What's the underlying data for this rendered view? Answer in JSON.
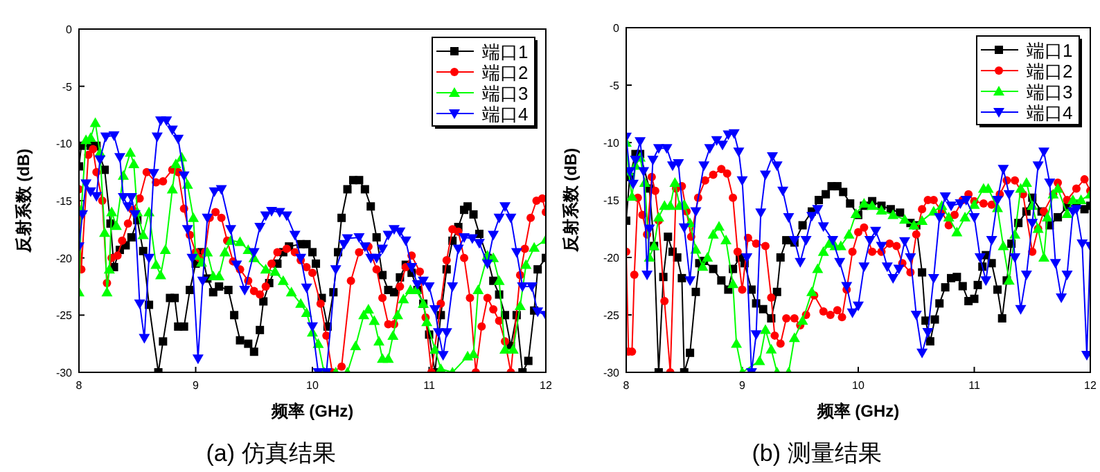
{
  "chart_data": [
    {
      "type": "line",
      "title": "(a) 仿真结果",
      "xlabel": "频率 (GHz)",
      "ylabel": "反射系数 (dB)",
      "xlim": [
        8,
        12
      ],
      "ylim": [
        -30,
        0
      ],
      "xticks": [
        8,
        9,
        10,
        11,
        12
      ],
      "yticks": [
        0,
        -5,
        -10,
        -15,
        -20,
        -25,
        -30
      ],
      "grid": false,
      "legend": "top right",
      "series": [
        {
          "name": "端口1",
          "color": "#000000",
          "marker": "square",
          "x": [
            8.0,
            8.02,
            8.1,
            8.15,
            8.22,
            8.27,
            8.3,
            8.35,
            8.4,
            8.45,
            8.5,
            8.55,
            8.6,
            8.68,
            8.72,
            8.78,
            8.82,
            8.85,
            8.9,
            8.95,
            9.0,
            9.05,
            9.1,
            9.15,
            9.2,
            9.28,
            9.33,
            9.38,
            9.45,
            9.5,
            9.55,
            9.58,
            9.63,
            9.7,
            9.75,
            9.8,
            9.9,
            9.95,
            10.0,
            10.03,
            10.08,
            10.13,
            10.18,
            10.22,
            10.25,
            10.3,
            10.35,
            10.4,
            10.45,
            10.5,
            10.55,
            10.6,
            10.65,
            10.7,
            10.75,
            10.8,
            10.85,
            10.9,
            10.95,
            11.0,
            11.05,
            11.1,
            11.15,
            11.2,
            11.25,
            11.3,
            11.33,
            11.38,
            11.43,
            11.5,
            11.55,
            11.6,
            11.65,
            11.7,
            11.75,
            11.8,
            11.85,
            11.9,
            11.93,
            12.0
          ],
          "values": [
            -12,
            -10.2,
            -10.2,
            -10.2,
            -12.3,
            -17,
            -20.8,
            -19.3,
            -18.9,
            -18.2,
            -16.7,
            -19.4,
            -24.1,
            -30,
            -27.3,
            -23.5,
            -23.5,
            -26,
            -26,
            -22.8,
            -20.5,
            -19.5,
            -21.8,
            -23,
            -22.5,
            -22.8,
            -25,
            -27.2,
            -27.5,
            -28.2,
            -26.3,
            -23.8,
            -22.2,
            -20.5,
            -19.5,
            -19,
            -18.8,
            -18.8,
            -19.5,
            -20.5,
            -23.5,
            -26,
            -23,
            -19.5,
            -16.5,
            -14,
            -13.2,
            -13.2,
            -14,
            -15.5,
            -18.2,
            -21.5,
            -22.8,
            -23,
            -21.7,
            -20.6,
            -21.3,
            -22.8,
            -24,
            -26.7,
            -30,
            -25,
            -21,
            -18.5,
            -17.3,
            -15.8,
            -15.5,
            -16.2,
            -17.9,
            -20,
            -22,
            -23.2,
            -25,
            -27.7,
            -25,
            -30,
            -29,
            -24.6,
            -21,
            -20
          ]
        },
        {
          "name": "端口2",
          "color": "#ff0000",
          "marker": "circle",
          "x": [
            8.0,
            8.02,
            8.08,
            8.12,
            8.15,
            8.2,
            8.24,
            8.28,
            8.33,
            8.37,
            8.42,
            8.46,
            8.52,
            8.58,
            8.66,
            8.72,
            8.8,
            8.85,
            8.9,
            8.95,
            9.0,
            9.03,
            9.08,
            9.12,
            9.17,
            9.22,
            9.27,
            9.32,
            9.38,
            9.45,
            9.5,
            9.55,
            9.6,
            9.65,
            9.7,
            9.78,
            9.85,
            9.9,
            9.95,
            10.0,
            10.07,
            10.12,
            10.17,
            10.25,
            10.33,
            10.4,
            10.48,
            10.55,
            10.6,
            10.65,
            10.7,
            10.75,
            10.8,
            10.85,
            10.92,
            10.97,
            11.02,
            11.1,
            11.15,
            11.2,
            11.25,
            11.3,
            11.35,
            11.4,
            11.45,
            11.5,
            11.55,
            11.6,
            11.65,
            11.7,
            11.78,
            11.82,
            11.87,
            11.92,
            11.97,
            12.0
          ],
          "values": [
            -14,
            -21,
            -11,
            -10.5,
            -12.5,
            -15,
            -22.2,
            -20,
            -19.8,
            -18.5,
            -17,
            -15.8,
            -14.8,
            -12.5,
            -13.4,
            -13.3,
            -12.3,
            -12.5,
            -15.7,
            -18,
            -19.5,
            -20,
            -19.5,
            -16.5,
            -16,
            -16.5,
            -18.5,
            -20.3,
            -21,
            -22,
            -22.9,
            -23.2,
            -22.5,
            -20.5,
            -19.5,
            -19.2,
            -19.5,
            -20.2,
            -20.8,
            -21.3,
            -24,
            -26.8,
            -30,
            -29.5,
            -22,
            -19.5,
            -19,
            -21,
            -23.5,
            -25.8,
            -25.8,
            -22.5,
            -20.8,
            -19.8,
            -21.2,
            -25.2,
            -30,
            -24,
            -20.2,
            -17.5,
            -17.7,
            -20,
            -23.5,
            -30,
            -26,
            -23.5,
            -24.5,
            -25.5,
            -27.3,
            -30,
            -21.5,
            -19.2,
            -16.5,
            -15,
            -14.8,
            -16
          ]
        },
        {
          "name": "端口3",
          "color": "#00ff00",
          "marker": "triangle",
          "x": [
            8.0,
            8.02,
            8.06,
            8.1,
            8.14,
            8.18,
            8.22,
            8.24,
            8.26,
            8.28,
            8.32,
            8.38,
            8.44,
            8.47,
            8.5,
            8.55,
            8.6,
            8.66,
            8.7,
            8.74,
            8.8,
            8.83,
            8.88,
            8.93,
            8.98,
            9.0,
            9.05,
            9.1,
            9.15,
            9.2,
            9.25,
            9.3,
            9.38,
            9.45,
            9.5,
            9.6,
            9.68,
            9.75,
            9.82,
            9.9,
            9.95,
            10.0,
            10.05,
            10.1,
            10.2,
            10.3,
            10.37,
            10.44,
            10.48,
            10.53,
            10.57,
            10.6,
            10.65,
            10.69,
            10.73,
            10.78,
            10.84,
            10.89,
            10.95,
            10.98,
            11.05,
            11.1,
            11.2,
            11.33,
            11.38,
            11.42,
            11.5,
            11.55,
            11.6,
            11.65,
            11.72,
            11.78,
            11.83,
            11.9,
            12.0
          ],
          "values": [
            -23,
            -15.8,
            -9.7,
            -9.5,
            -8.2,
            -10.8,
            -17.8,
            -23,
            -21,
            -16,
            -17.2,
            -12.8,
            -10.8,
            -11.8,
            -16,
            -18,
            -16,
            -20.6,
            -21.5,
            -19.3,
            -14,
            -11.8,
            -11.2,
            -13.6,
            -16.5,
            -19.8,
            -20.4,
            -19.5,
            -21.6,
            -21.6,
            -19.5,
            -18.5,
            -18.6,
            -19.3,
            -20,
            -21,
            -21.2,
            -22,
            -23,
            -24,
            -24.8,
            -26.5,
            -27.5,
            -30,
            -30,
            -30,
            -27.7,
            -25,
            -24.5,
            -25.5,
            -27.3,
            -28.8,
            -28.8,
            -26.8,
            -25,
            -23.6,
            -22.8,
            -22.8,
            -24,
            -25.6,
            -28,
            -29.7,
            -30,
            -28.6,
            -28.4,
            -22.8,
            -19.8,
            -20,
            -22,
            -28,
            -28,
            -24.2,
            -20.6,
            -19.1,
            -18.4
          ]
        },
        {
          "name": "端口4",
          "color": "#0000ff",
          "marker": "triangle_down",
          "x": [
            8.0,
            8.03,
            8.06,
            8.1,
            8.15,
            8.18,
            8.23,
            8.3,
            8.35,
            8.38,
            8.42,
            8.45,
            8.48,
            8.52,
            8.56,
            8.6,
            8.64,
            8.67,
            8.7,
            8.75,
            8.8,
            8.85,
            8.9,
            8.93,
            8.97,
            9.02,
            9.06,
            9.1,
            9.16,
            9.22,
            9.3,
            9.35,
            9.42,
            9.5,
            9.55,
            9.6,
            9.65,
            9.72,
            9.78,
            9.85,
            9.9,
            9.95,
            10.0,
            10.05,
            10.12,
            10.2,
            10.27,
            10.3,
            10.4,
            10.45,
            10.5,
            10.55,
            10.6,
            10.65,
            10.7,
            10.75,
            10.8,
            10.85,
            10.9,
            10.95,
            11.0,
            11.05,
            11.08,
            11.12,
            11.15,
            11.2,
            11.25,
            11.3,
            11.37,
            11.43,
            11.5,
            11.55,
            11.6,
            11.65,
            11.7,
            11.75,
            11.8,
            11.88,
            11.93,
            12.0
          ],
          "values": [
            -19,
            -16.2,
            -13.5,
            -14.2,
            -14.6,
            -11.4,
            -9.4,
            -9.3,
            -11.2,
            -14.7,
            -15.5,
            -14.7,
            -16.2,
            -24,
            -27,
            -20,
            -12.6,
            -9.4,
            -8,
            -8,
            -8.8,
            -9.6,
            -12.8,
            -17.5,
            -20,
            -28.8,
            -22,
            -16.5,
            -14.2,
            -14,
            -17.5,
            -20.6,
            -22.8,
            -19.5,
            -17.3,
            -16.3,
            -15.9,
            -16,
            -16.3,
            -18,
            -20,
            -22.6,
            -26,
            -30,
            -30,
            -21,
            -18.8,
            -18.3,
            -18.2,
            -19,
            -20,
            -20,
            -19.2,
            -18,
            -17.5,
            -17.7,
            -18.5,
            -20.8,
            -22.3,
            -22,
            -22.5,
            -24.5,
            -26.5,
            -28.5,
            -26.5,
            -22.5,
            -19.2,
            -18.2,
            -18.3,
            -18.7,
            -20.5,
            -18,
            -16.5,
            -15.5,
            -16.5,
            -19.5,
            -22.5,
            -22.5,
            -24.7,
            -25
          ]
        }
      ]
    },
    {
      "type": "line",
      "title": "(b) 测量结果",
      "xlabel": "频率 (GHz)",
      "ylabel": "反射系数 (dB)",
      "xlim": [
        8,
        12
      ],
      "ylim": [
        -30,
        0
      ],
      "xticks": [
        8,
        9,
        10,
        11,
        12
      ],
      "yticks": [
        0,
        -5,
        -10,
        -15,
        -20,
        -25,
        -30
      ],
      "grid": false,
      "legend": "top right",
      "series": [
        {
          "name": "端口1",
          "color": "#000000",
          "marker": "square",
          "x": [
            8.0,
            8.03,
            8.08,
            8.12,
            8.2,
            8.24,
            8.28,
            8.32,
            8.36,
            8.4,
            8.44,
            8.48,
            8.5,
            8.55,
            8.6,
            8.63,
            8.67,
            8.75,
            8.82,
            8.88,
            8.92,
            8.98,
            9.02,
            9.08,
            9.12,
            9.18,
            9.25,
            9.3,
            9.33,
            9.38,
            9.45,
            9.52,
            9.6,
            9.66,
            9.72,
            9.77,
            9.82,
            9.87,
            9.93,
            10.0,
            10.05,
            10.12,
            10.2,
            10.28,
            10.36,
            10.45,
            10.5,
            10.55,
            10.58,
            10.62,
            10.66,
            10.7,
            10.75,
            10.8,
            10.85,
            10.9,
            10.95,
            11.0,
            11.03,
            11.07,
            11.1,
            11.15,
            11.2,
            11.24,
            11.28,
            11.32,
            11.38,
            11.45,
            11.5,
            11.58,
            11.65,
            11.72,
            11.8,
            11.88,
            11.95,
            12.0
          ],
          "values": [
            -16.8,
            -13,
            -11,
            -11,
            -14,
            -19,
            -30,
            -21.7,
            -18.2,
            -19.5,
            -20,
            -21.8,
            -30,
            -28.3,
            -23,
            -20.5,
            -20.3,
            -21,
            -22,
            -22.8,
            -21,
            -20,
            -20.5,
            -22.8,
            -24,
            -24.5,
            -25.3,
            -23,
            -20,
            -18.5,
            -18.7,
            -17.2,
            -16,
            -15,
            -14.5,
            -13.8,
            -13.8,
            -14.3,
            -15.3,
            -16.3,
            -15.5,
            -15.1,
            -15.5,
            -15.8,
            -16.1,
            -17,
            -17.2,
            -21.3,
            -25.5,
            -27.3,
            -25.4,
            -24,
            -22.6,
            -21.8,
            -21.7,
            -22.5,
            -23.8,
            -23.6,
            -22.4,
            -20.8,
            -19.8,
            -20.5,
            -22.8,
            -25.3,
            -22,
            -18.8,
            -17,
            -16,
            -14.8,
            -16,
            -17.2,
            -16.5,
            -15.6,
            -15.4,
            -15.8,
            -15.5
          ]
        },
        {
          "name": "端口2",
          "color": "#ff0000",
          "marker": "circle",
          "x": [
            8.0,
            8.02,
            8.05,
            8.07,
            8.1,
            8.14,
            8.18,
            8.22,
            8.25,
            8.28,
            8.33,
            8.38,
            8.43,
            8.48,
            8.52,
            8.56,
            8.62,
            8.68,
            8.75,
            8.82,
            8.87,
            8.92,
            8.96,
            9.0,
            9.05,
            9.12,
            9.2,
            9.25,
            9.28,
            9.33,
            9.38,
            9.45,
            9.5,
            9.55,
            9.62,
            9.7,
            9.76,
            9.82,
            9.86,
            9.9,
            9.95,
            10.0,
            10.05,
            10.12,
            10.2,
            10.27,
            10.33,
            10.38,
            10.45,
            10.5,
            10.55,
            10.6,
            10.65,
            10.72,
            10.78,
            10.83,
            10.9,
            10.95,
            11.0,
            11.08,
            11.15,
            11.22,
            11.28,
            11.35,
            11.42,
            11.5,
            11.55,
            11.6,
            11.68,
            11.72,
            11.8,
            11.88,
            11.95,
            12.0
          ],
          "values": [
            -19.5,
            -28.2,
            -28.2,
            -21.5,
            -14.8,
            -16.3,
            -18,
            -13,
            -14.2,
            -16.8,
            -23.8,
            -30,
            -14,
            -13.8,
            -16,
            -18.2,
            -14.8,
            -13.3,
            -12.8,
            -12.3,
            -12.7,
            -14.8,
            -19.5,
            -22.8,
            -18.3,
            -18.8,
            -19,
            -23.5,
            -26.8,
            -27.5,
            -25.3,
            -25.3,
            -25.9,
            -25,
            -23.3,
            -24.7,
            -25,
            -24.6,
            -25.2,
            -22.8,
            -19.5,
            -17.8,
            -17.4,
            -19.5,
            -19.5,
            -18.8,
            -19,
            -20.5,
            -21.3,
            -18,
            -15.8,
            -15,
            -15,
            -16,
            -17.2,
            -16.3,
            -15,
            -14.5,
            -15.1,
            -15.3,
            -15.4,
            -14.5,
            -13.3,
            -13.3,
            -14.5,
            -19.5,
            -17.5,
            -16,
            -14.5,
            -13.5,
            -15,
            -14,
            -13.2,
            -14.2
          ]
        },
        {
          "name": "端口3",
          "color": "#00ff00",
          "marker": "triangle",
          "x": [
            8.0,
            8.02,
            8.05,
            8.08,
            8.12,
            8.16,
            8.2,
            8.24,
            8.28,
            8.33,
            8.38,
            8.42,
            8.46,
            8.5,
            8.55,
            8.6,
            8.66,
            8.7,
            8.75,
            8.8,
            8.86,
            8.92,
            8.95,
            9.0,
            9.15,
            9.2,
            9.25,
            9.3,
            9.4,
            9.45,
            9.52,
            9.6,
            9.65,
            9.7,
            9.75,
            9.8,
            9.85,
            9.92,
            9.98,
            10.05,
            10.12,
            10.2,
            10.3,
            10.4,
            10.48,
            10.55,
            10.65,
            10.72,
            10.78,
            10.85,
            10.92,
            11.0,
            11.08,
            11.12,
            11.2,
            11.25,
            11.3,
            11.35,
            11.4,
            11.45,
            11.5,
            11.55,
            11.6,
            11.63,
            11.68,
            11.72,
            11.8,
            11.85,
            11.92,
            12.0
          ],
          "values": [
            -10,
            -12.5,
            -14.7,
            -12,
            -11.3,
            -13.5,
            -20,
            -19,
            -16.5,
            -15.5,
            -15.5,
            -13.5,
            -15.5,
            -15.4,
            -17,
            -19.3,
            -20.8,
            -20,
            -18,
            -17.3,
            -18.5,
            -22.3,
            -27.5,
            -30,
            -29,
            -26.3,
            -28,
            -30,
            -30,
            -27,
            -25.5,
            -23,
            -21,
            -19.5,
            -18.8,
            -19,
            -19,
            -18,
            -16.2,
            -15.3,
            -15.5,
            -15.9,
            -16.3,
            -16.7,
            -17.2,
            -16.8,
            -16,
            -15.5,
            -16.5,
            -17.8,
            -16.5,
            -15.4,
            -14,
            -14,
            -15.7,
            -19,
            -22,
            -18,
            -14,
            -13.5,
            -15.5,
            -17.5,
            -20,
            -16.5,
            -14.5,
            -14,
            -16.2,
            -15,
            -15,
            -14.5
          ]
        },
        {
          "name": "端口4",
          "color": "#0000ff",
          "marker": "triangle_down",
          "x": [
            8.0,
            8.03,
            8.06,
            8.08,
            8.12,
            8.15,
            8.18,
            8.2,
            8.23,
            8.28,
            8.35,
            8.4,
            8.45,
            8.5,
            8.55,
            8.6,
            8.67,
            8.72,
            8.78,
            8.83,
            8.88,
            8.93,
            8.97,
            9.0,
            9.04,
            9.08,
            9.12,
            9.16,
            9.2,
            9.26,
            9.3,
            9.35,
            9.4,
            9.45,
            9.5,
            9.55,
            9.6,
            9.65,
            9.7,
            9.78,
            9.84,
            9.9,
            9.95,
            10.0,
            10.05,
            10.1,
            10.15,
            10.2,
            10.25,
            10.3,
            10.35,
            10.4,
            10.45,
            10.5,
            10.55,
            10.6,
            10.65,
            10.7,
            10.75,
            10.8,
            10.88,
            10.93,
            11.0,
            11.05,
            11.1,
            11.15,
            11.2,
            11.25,
            11.3,
            11.35,
            11.4,
            11.45,
            11.5,
            11.55,
            11.6,
            11.65,
            11.7,
            11.75,
            11.8,
            11.85,
            11.88,
            11.93,
            11.97,
            12.0
          ],
          "values": [
            -9.5,
            -12.5,
            -13.6,
            -11.5,
            -9.9,
            -12.5,
            -21.5,
            -17.5,
            -11.5,
            -10.5,
            -10.5,
            -12,
            -11.8,
            -17.4,
            -22,
            -16,
            -12,
            -10.5,
            -9.8,
            -10.2,
            -9.3,
            -9.2,
            -10.8,
            -13.3,
            -20,
            -30,
            -26.7,
            -16.1,
            -12.8,
            -11.2,
            -12,
            -14.2,
            -16.5,
            -18.5,
            -20.4,
            -18.5,
            -16.4,
            -15.8,
            -17.3,
            -18.5,
            -20.4,
            -22.5,
            -24.8,
            -24.2,
            -20.8,
            -18.5,
            -17.7,
            -19,
            -20.8,
            -21.8,
            -21,
            -18.6,
            -20,
            -25,
            -28.3,
            -26.5,
            -21.8,
            -16.5,
            -14.7,
            -15.5,
            -15.3,
            -15,
            -16.5,
            -20,
            -22,
            -18.5,
            -15,
            -12.3,
            -14.5,
            -20,
            -24.5,
            -21.5,
            -17,
            -12,
            -10.8,
            -13.5,
            -20.5,
            -23.5,
            -21.5,
            -16,
            -15.8,
            -18.8,
            -28.5,
            -19
          ]
        }
      ]
    }
  ]
}
